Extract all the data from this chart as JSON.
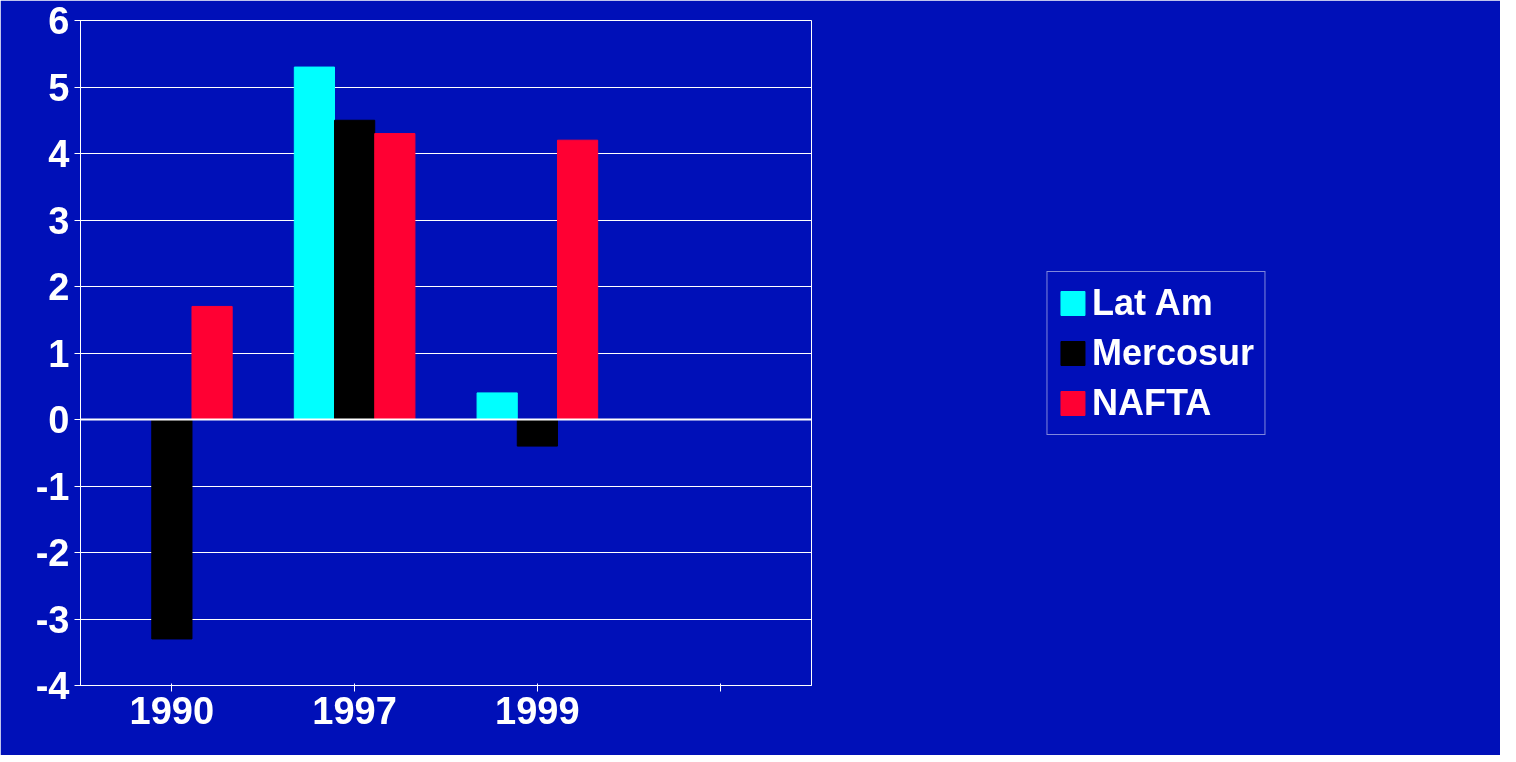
{
  "chart_data": {
    "type": "bar",
    "categories": [
      "1990",
      "1997",
      "1999",
      null
    ],
    "series": [
      {
        "name": "Lat Am",
        "color": "#00ffff",
        "values": [
          0,
          5.3,
          0.4,
          null
        ]
      },
      {
        "name": "Mercosur",
        "color": "#000000",
        "values": [
          -3.3,
          4.5,
          -0.4,
          null
        ]
      },
      {
        "name": "NAFTA",
        "color": "#ff0033",
        "values": [
          1.7,
          4.3,
          4.2,
          null
        ]
      }
    ],
    "ylim": [
      -4,
      6
    ],
    "yticks": [
      -4,
      -3,
      -2,
      -1,
      0,
      1,
      2,
      3,
      4,
      5,
      6
    ],
    "grid": "y",
    "legend": "right"
  }
}
